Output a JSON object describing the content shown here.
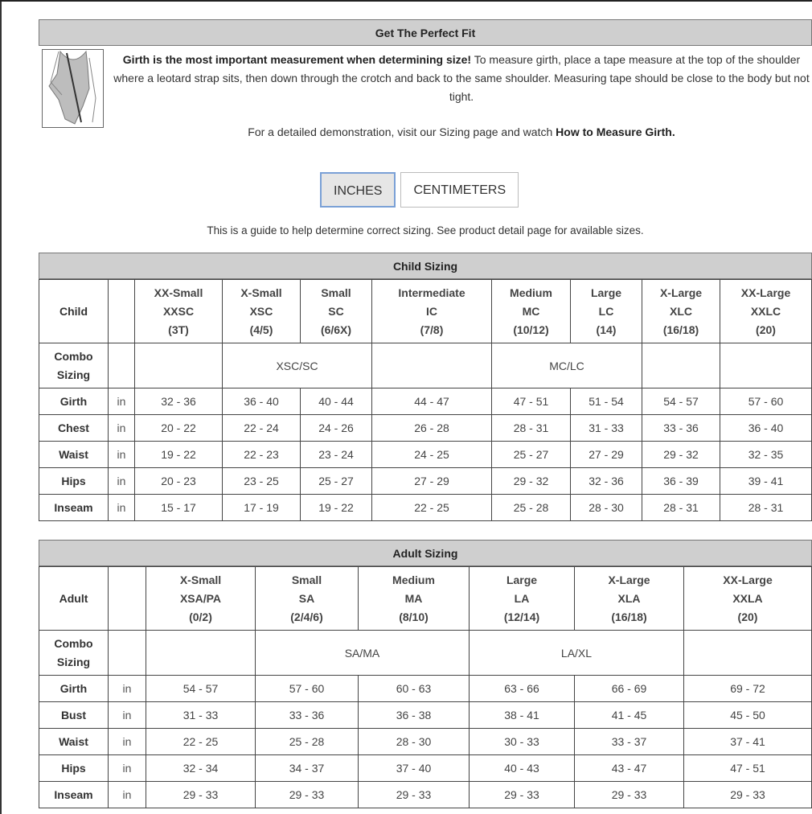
{
  "fit": {
    "title": "Get The Perfect Fit",
    "girth_bold": "Girth is the most important measurement when determining size!",
    "girth_text": " To measure girth, place a tape measure at the top of the shoulder where a leotard strap sits, then down through the crotch and back to the same shoulder. Measuring tape should be close to the body but not tight.",
    "demo_text": "For a detailed demonstration, visit our Sizing page and watch ",
    "demo_link": "How to Measure Girth."
  },
  "units": {
    "inches": "INCHES",
    "centimeters": "CENTIMETERS",
    "selected": "INCHES"
  },
  "guide": "This is a guide to help determine correct sizing. See product detail page for available sizes.",
  "child": {
    "title": "Child Sizing",
    "corner": "Child",
    "sizes": [
      [
        "XX-Small",
        "XXSC",
        "(3T)"
      ],
      [
        "X-Small",
        "XSC",
        "(4/5)"
      ],
      [
        "Small",
        "SC",
        "(6/6X)"
      ],
      [
        "Intermediate",
        "IC",
        "(7/8)"
      ],
      [
        "Medium",
        "MC",
        "(10/12)"
      ],
      [
        "Large",
        "LC",
        "(14)"
      ],
      [
        "X-Large",
        "XLC",
        "(16/18)"
      ],
      [
        "XX-Large",
        "XXLC",
        "(20)"
      ]
    ],
    "combo_label": "Combo Sizing",
    "combo": [
      {
        "text": "",
        "span": 1
      },
      {
        "text": "XSC/SC",
        "span": 2
      },
      {
        "text": "",
        "span": 1
      },
      {
        "text": "MC/LC",
        "span": 2
      },
      {
        "text": "",
        "span": 1
      },
      {
        "text": "",
        "span": 1
      }
    ],
    "rows": [
      {
        "label": "Girth",
        "unit": "in",
        "values": [
          "32 - 36",
          "36 - 40",
          "40 - 44",
          "44 - 47",
          "47 - 51",
          "51 - 54",
          "54 - 57",
          "57 - 60"
        ]
      },
      {
        "label": "Chest",
        "unit": "in",
        "values": [
          "20 - 22",
          "22 - 24",
          "24 - 26",
          "26 - 28",
          "28 - 31",
          "31 - 33",
          "33 - 36",
          "36 - 40"
        ]
      },
      {
        "label": "Waist",
        "unit": "in",
        "values": [
          "19 - 22",
          "22 - 23",
          "23 - 24",
          "24 - 25",
          "25 - 27",
          "27 - 29",
          "29 - 32",
          "32 - 35"
        ]
      },
      {
        "label": "Hips",
        "unit": "in",
        "values": [
          "20 - 23",
          "23 - 25",
          "25 - 27",
          "27 - 29",
          "29 - 32",
          "32 - 36",
          "36 - 39",
          "39 - 41"
        ]
      },
      {
        "label": "Inseam",
        "unit": "in",
        "values": [
          "15 - 17",
          "17 - 19",
          "19 - 22",
          "22 - 25",
          "25 - 28",
          "28 - 30",
          "28 - 31",
          "28 - 31"
        ]
      }
    ]
  },
  "adult": {
    "title": "Adult Sizing",
    "corner": "Adult",
    "sizes": [
      [
        "X-Small",
        "XSA/PA",
        "(0/2)"
      ],
      [
        "Small",
        "SA",
        "(2/4/6)"
      ],
      [
        "Medium",
        "MA",
        "(8/10)"
      ],
      [
        "Large",
        "LA",
        "(12/14)"
      ],
      [
        "X-Large",
        "XLA",
        "(16/18)"
      ],
      [
        "XX-Large",
        "XXLA",
        "(20)"
      ]
    ],
    "combo_label": "Combo Sizing",
    "combo": [
      {
        "text": "",
        "span": 1
      },
      {
        "text": "SA/MA",
        "span": 2
      },
      {
        "text": "LA/XL",
        "span": 2
      },
      {
        "text": "",
        "span": 1
      }
    ],
    "rows": [
      {
        "label": "Girth",
        "unit": "in",
        "values": [
          "54 - 57",
          "57 - 60",
          "60 - 63",
          "63 - 66",
          "66 - 69",
          "69 - 72"
        ]
      },
      {
        "label": "Bust",
        "unit": "in",
        "values": [
          "31 - 33",
          "33 - 36",
          "36 - 38",
          "38 - 41",
          "41 - 45",
          "45 - 50"
        ]
      },
      {
        "label": "Waist",
        "unit": "in",
        "values": [
          "22 - 25",
          "25 - 28",
          "28 - 30",
          "30 - 33",
          "33 - 37",
          "37 - 41"
        ]
      },
      {
        "label": "Hips",
        "unit": "in",
        "values": [
          "32 - 34",
          "34 - 37",
          "37 - 40",
          "40 - 43",
          "43 - 47",
          "47 - 51"
        ]
      },
      {
        "label": "Inseam",
        "unit": "in",
        "values": [
          "29 - 33",
          "29 - 33",
          "29 - 33",
          "29 - 33",
          "29 - 33",
          "29 - 33"
        ]
      }
    ]
  }
}
